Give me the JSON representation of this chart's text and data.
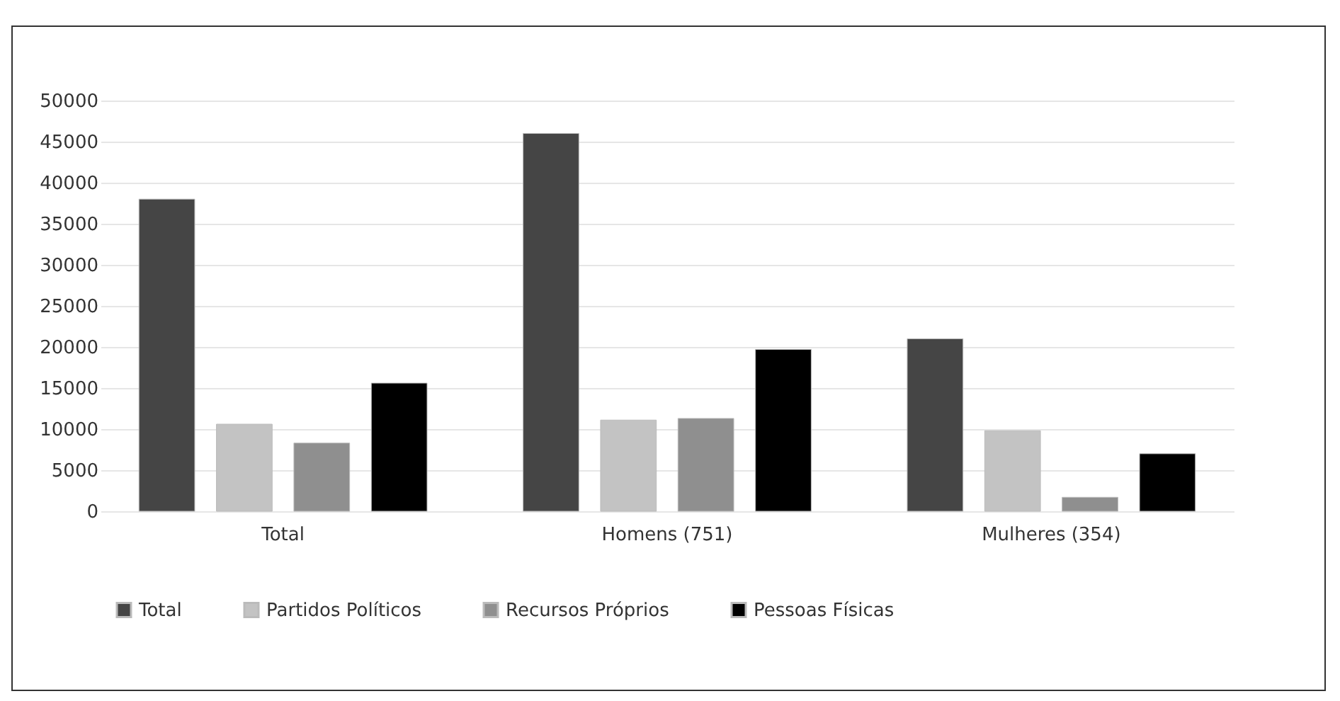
{
  "chart_data": {
    "type": "bar",
    "categories": [
      "Total",
      "Homens (751)",
      "Mulheres (354)"
    ],
    "series": [
      {
        "name": "Total",
        "color": "#454545",
        "values": [
          38000,
          46000,
          21000
        ]
      },
      {
        "name": "Partidos Políticos",
        "color": "#c3c3c3",
        "values": [
          10600,
          11100,
          9800
        ]
      },
      {
        "name": "Recursos Próprios",
        "color": "#8f8f8f",
        "values": [
          8300,
          11300,
          1700
        ]
      },
      {
        "name": "Pessoas Físicas",
        "color": "#000000",
        "values": [
          15600,
          19700,
          7000
        ]
      }
    ],
    "ylim": [
      0,
      50000
    ],
    "yticks": [
      0,
      5000,
      10000,
      15000,
      20000,
      25000,
      30000,
      35000,
      40000,
      45000,
      50000
    ],
    "grid": "y",
    "legend": "bottom"
  }
}
